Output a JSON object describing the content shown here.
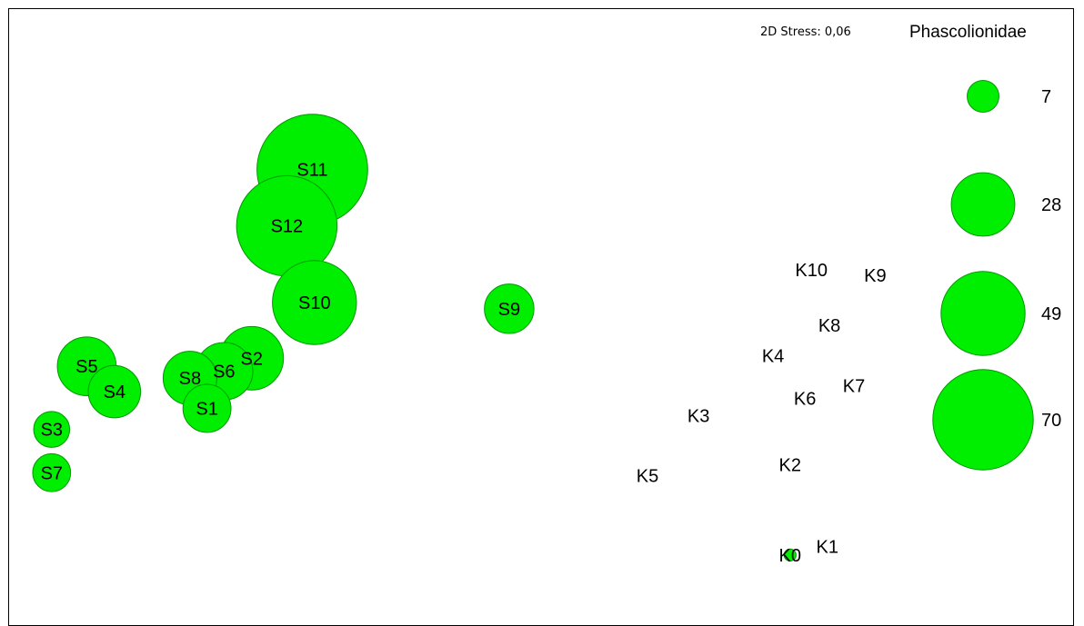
{
  "chart_data": {
    "type": "scatter",
    "title": "Phascolionidae",
    "annotation": "2D Stress: 0,06",
    "xlabel": "",
    "ylabel": "",
    "grid": false,
    "legend_placement": "right",
    "bubble_color": "#00ee00",
    "bubble_stroke": "#009900",
    "xlim": [
      0,
      100
    ],
    "ylim": [
      0,
      100
    ],
    "points": [
      {
        "label": "S11",
        "x": 28.5,
        "y": 72.6,
        "value": 85
      },
      {
        "label": "S12",
        "x": 26.1,
        "y": 63.5,
        "value": 70
      },
      {
        "label": "S10",
        "x": 28.7,
        "y": 51.1,
        "value": 49
      },
      {
        "label": "S9",
        "x": 47.0,
        "y": 50.1,
        "value": 17
      },
      {
        "label": "S2",
        "x": 22.8,
        "y": 42.1,
        "value": 28
      },
      {
        "label": "S6",
        "x": 20.2,
        "y": 40.0,
        "value": 23
      },
      {
        "label": "S5",
        "x": 7.3,
        "y": 40.8,
        "value": 24
      },
      {
        "label": "S4",
        "x": 9.9,
        "y": 36.7,
        "value": 19
      },
      {
        "label": "S8",
        "x": 17.0,
        "y": 38.9,
        "value": 20
      },
      {
        "label": "S1",
        "x": 18.6,
        "y": 34.0,
        "value": 16
      },
      {
        "label": "S3",
        "x": 4.0,
        "y": 30.6,
        "value": 9
      },
      {
        "label": "S7",
        "x": 4.0,
        "y": 23.6,
        "value": 10
      },
      {
        "label": "K10",
        "x": 75.4,
        "y": 56.4,
        "value": 0
      },
      {
        "label": "K9",
        "x": 81.4,
        "y": 55.5,
        "value": 0
      },
      {
        "label": "K8",
        "x": 77.1,
        "y": 47.4,
        "value": 0
      },
      {
        "label": "K4",
        "x": 71.8,
        "y": 42.5,
        "value": 0
      },
      {
        "label": "K7",
        "x": 79.4,
        "y": 37.7,
        "value": 0
      },
      {
        "label": "K6",
        "x": 74.8,
        "y": 35.6,
        "value": 0
      },
      {
        "label": "K3",
        "x": 64.8,
        "y": 32.8,
        "value": 0
      },
      {
        "label": "K2",
        "x": 73.4,
        "y": 24.9,
        "value": 0
      },
      {
        "label": "K5",
        "x": 60.0,
        "y": 23.1,
        "value": 0
      },
      {
        "label": "K1",
        "x": 76.9,
        "y": 11.7,
        "value": 0
      },
      {
        "label": "K0",
        "x": 73.4,
        "y": 10.3,
        "value": 1
      }
    ],
    "legend": [
      {
        "label": "7",
        "value": 7
      },
      {
        "label": "28",
        "value": 28
      },
      {
        "label": "49",
        "value": 49
      },
      {
        "label": "70",
        "value": 70
      }
    ]
  }
}
